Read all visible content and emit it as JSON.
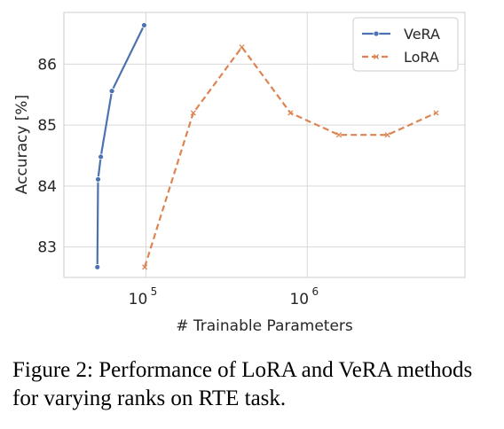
{
  "caption": "Figure 2: Performance of LoRA and VeRA methods for varying ranks on RTE task.",
  "chart_data": {
    "type": "line",
    "title": "",
    "xlabel": "# Trainable Parameters",
    "ylabel": "Accuracy [%]",
    "xscale": "log",
    "xlim": [
      31000,
      9500000
    ],
    "ylim": [
      82.5,
      86.85
    ],
    "xticks": [
      {
        "value": 100000,
        "base": "10",
        "exp": "5"
      },
      {
        "value": 1000000,
        "base": "10",
        "exp": "6"
      }
    ],
    "yticks": [
      83,
      84,
      85,
      86
    ],
    "grid": true,
    "legend_position": "top-right",
    "series": [
      {
        "name": "VeRA",
        "color": "#4c72b0",
        "linestyle": "solid",
        "marker": "circle",
        "x": [
          50000,
          50500,
          52500,
          61500,
          97500
        ],
        "y": [
          82.67,
          84.11,
          84.48,
          85.56,
          86.64
        ]
      },
      {
        "name": "LoRA",
        "color": "#dd8452",
        "linestyle": "dashed",
        "marker": "x",
        "x": [
          98300,
          196600,
          393200,
          786400,
          1572900,
          3145700,
          6291500
        ],
        "y": [
          82.67,
          85.2,
          86.28,
          85.2,
          84.84,
          84.84,
          85.2
        ]
      }
    ]
  }
}
